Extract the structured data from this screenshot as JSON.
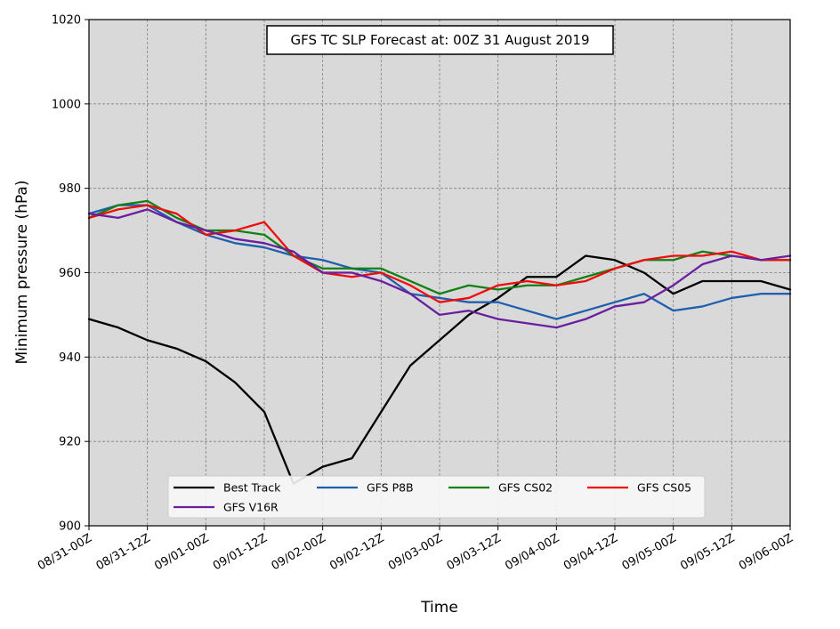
{
  "chart_data": {
    "type": "line",
    "title": "GFS TC SLP Forecast at: 00Z 31 August 2019",
    "xlabel": "Time",
    "ylabel": "Minimum pressure (hPa)",
    "ylim": [
      900,
      1020
    ],
    "yticks": [
      900,
      920,
      940,
      960,
      980,
      1000,
      1020
    ],
    "xticks": [
      "08/31-00Z",
      "08/31-12Z",
      "09/01-00Z",
      "09/01-12Z",
      "09/02-00Z",
      "09/02-12Z",
      "09/03-00Z",
      "09/03-12Z",
      "09/04-00Z",
      "09/04-12Z",
      "09/05-00Z",
      "09/05-12Z",
      "09/06-00Z"
    ],
    "x_step_hours": 6,
    "grid": true,
    "legend_position": "bottom-center",
    "colors": {
      "plot_background": "#d9d9d9",
      "grid": "#7f7f7f"
    },
    "series": [
      {
        "name": "Best Track",
        "color": "#000000",
        "values": [
          949,
          947,
          944,
          942,
          939,
          934,
          927,
          910,
          914,
          916,
          927,
          938,
          944,
          950,
          954,
          959,
          959,
          964,
          963,
          960,
          955,
          958,
          958,
          958,
          956
        ]
      },
      {
        "name": "GFS P8B",
        "color": "#1f5fae",
        "values": [
          974,
          976,
          976,
          972,
          969,
          967,
          966,
          964,
          963,
          961,
          960,
          955,
          954,
          953,
          953,
          951,
          949,
          951,
          953,
          955,
          951,
          952,
          954,
          955,
          955
        ]
      },
      {
        "name": "GFS CS02",
        "color": "#138013",
        "values": [
          973,
          976,
          977,
          973,
          970,
          970,
          969,
          964,
          961,
          961,
          961,
          958,
          955,
          957,
          956,
          957,
          957,
          959,
          961,
          963,
          963,
          965,
          964,
          963,
          963
        ]
      },
      {
        "name": "GFS CS05",
        "color": "#ee0d0d",
        "values": [
          973,
          975,
          976,
          974,
          969,
          970,
          972,
          964,
          960,
          959,
          960,
          957,
          953,
          954,
          957,
          958,
          957,
          958,
          961,
          963,
          964,
          964,
          965,
          963,
          963
        ]
      },
      {
        "name": "GFS V16R",
        "color": "#6a1f9e",
        "values": [
          974,
          973,
          975,
          972,
          970,
          968,
          967,
          965,
          960,
          960,
          958,
          955,
          950,
          951,
          949,
          948,
          947,
          949,
          952,
          953,
          957,
          962,
          964,
          963,
          964
        ]
      }
    ]
  }
}
